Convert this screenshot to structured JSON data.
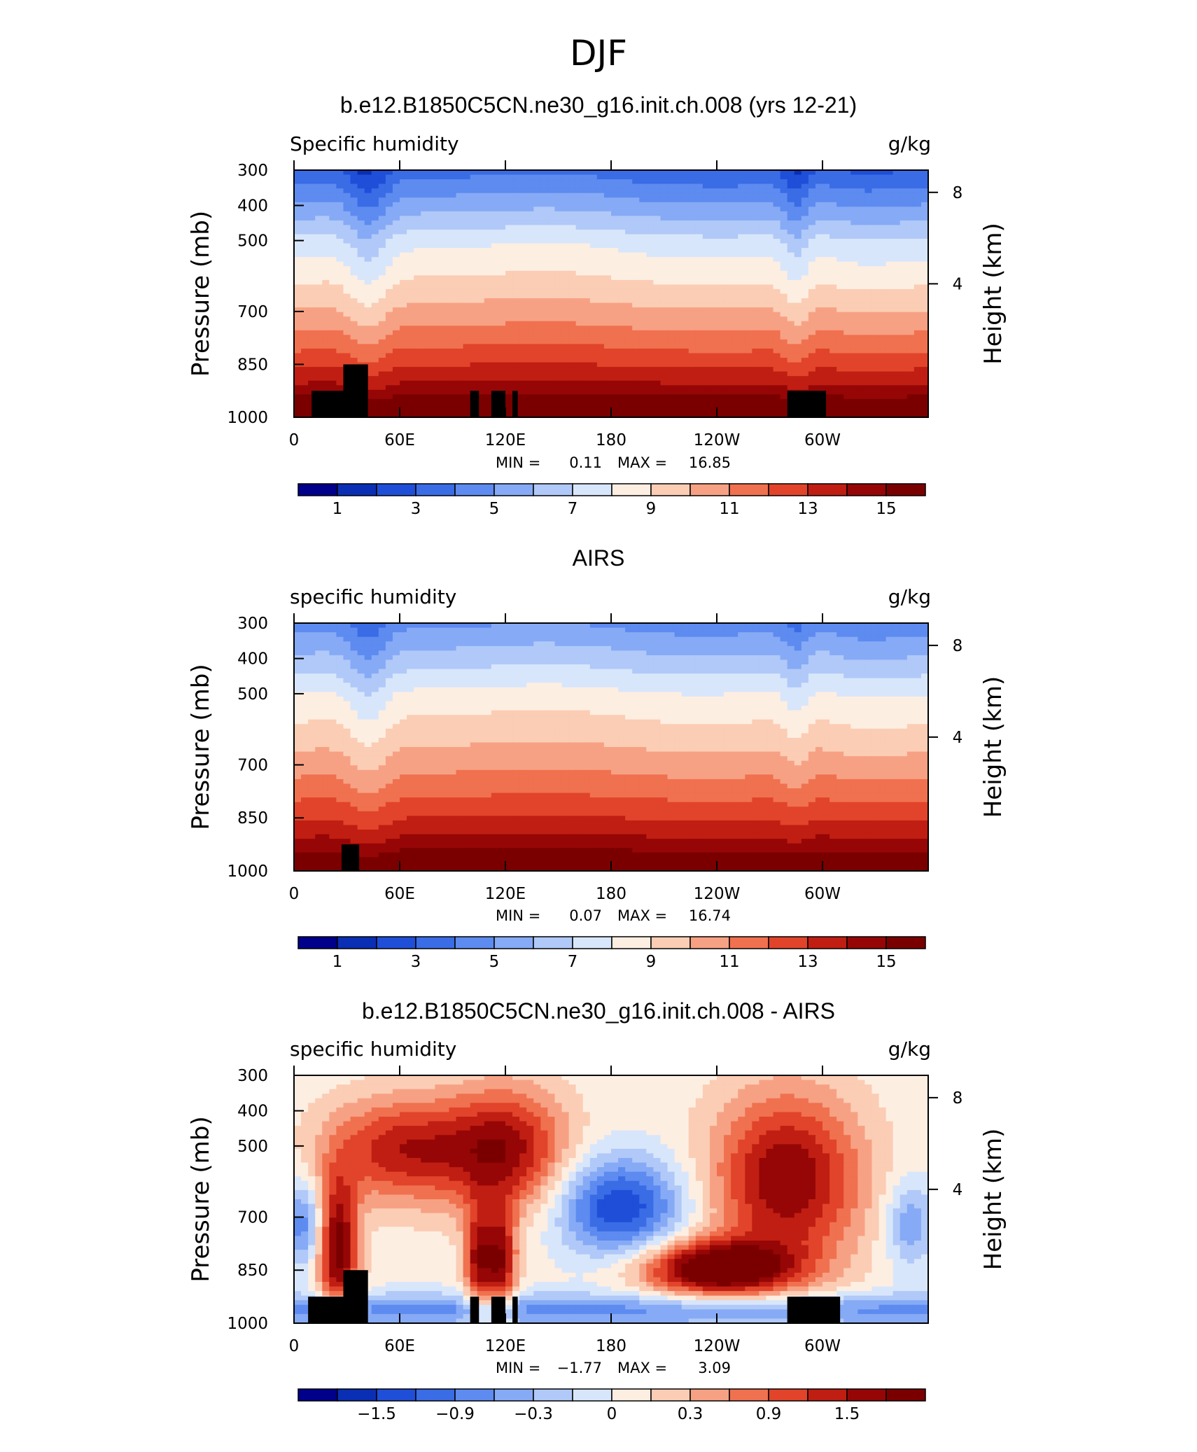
{
  "figure_title": "DJF",
  "chart_data": [
    {
      "type": "heatmap",
      "title": "b.e12.B1850C5CN.ne30_g16.init.ch.008 (yrs 12-21)",
      "left_label": "Specific humidity",
      "right_label": "g/kg",
      "ylabel": "Pressure (mb)",
      "ylabel_right": "Height (km)",
      "pressure_ticks": [
        "300",
        "400",
        "500",
        "700",
        "850",
        "1000"
      ],
      "height_ticks": [
        "8",
        "4"
      ],
      "x_tick_labels": [
        "0",
        "60E",
        "120E",
        "180",
        "120W",
        "60W"
      ],
      "stats": {
        "min_label": "MIN =",
        "min": "0.11",
        "max_label": "MAX =",
        "max": "16.85"
      },
      "colorbar_ticks": [
        "1",
        "3",
        "5",
        "7",
        "9",
        "11",
        "13",
        "15"
      ],
      "colors": [
        "#00008b",
        "#0a2fb4",
        "#1f4fd8",
        "#3a6ce6",
        "#5d8bf0",
        "#86aaf5",
        "#b0c9f8",
        "#d8e6fb",
        "#fdeee2",
        "#fbcdb4",
        "#f7a184",
        "#f0714f",
        "#e1442a",
        "#c01e12",
        "#960606",
        "#7a0000"
      ],
      "profile": {
        "base_level": 17.5,
        "base_span": 13.2,
        "ridge_amp": 0.9,
        "africa_dip": 1.8,
        "andes_dip": 1.6,
        "upper_lat": 2.0
      },
      "terrain": [
        [
          10,
          32,
          2
        ],
        [
          28,
          42,
          3
        ],
        [
          100,
          105,
          2
        ],
        [
          112,
          120,
          2
        ],
        [
          124,
          127,
          2
        ],
        [
          280,
          302,
          2
        ]
      ]
    },
    {
      "type": "heatmap",
      "title": "AIRS",
      "left_label": "specific humidity",
      "right_label": "g/kg",
      "ylabel": "Pressure (mb)",
      "ylabel_right": "Height (km)",
      "pressure_ticks": [
        "300",
        "400",
        "500",
        "700",
        "850",
        "1000"
      ],
      "height_ticks": [
        "8",
        "4"
      ],
      "x_tick_labels": [
        "0",
        "60E",
        "120E",
        "180",
        "120W",
        "60W"
      ],
      "stats": {
        "min_label": "MIN =",
        "min": "0.07",
        "max_label": "MAX =",
        "max": "16.74"
      },
      "colorbar_ticks": [
        "1",
        "3",
        "5",
        "7",
        "9",
        "11",
        "13",
        "15"
      ],
      "colors": [
        "#00008b",
        "#0a2fb4",
        "#1f4fd8",
        "#3a6ce6",
        "#5d8bf0",
        "#86aaf5",
        "#b0c9f8",
        "#d8e6fb",
        "#fdeee2",
        "#fbcdb4",
        "#f7a184",
        "#f0714f",
        "#e1442a",
        "#c01e12",
        "#960606",
        "#7a0000"
      ],
      "profile": {
        "base_level": 17.0,
        "base_span": 11.8,
        "ridge_amp": 0.7,
        "africa_dip": 1.6,
        "andes_dip": 1.2,
        "upper_lat": 1.6
      },
      "terrain": [
        [
          27,
          37,
          2
        ]
      ]
    },
    {
      "type": "heatmap",
      "title": "b.e12.B1850C5CN.ne30_g16.init.ch.008 - AIRS",
      "left_label": "specific humidity",
      "right_label": "g/kg",
      "ylabel": "Pressure (mb)",
      "ylabel_right": "Height (km)",
      "pressure_ticks": [
        "300",
        "400",
        "500",
        "700",
        "850",
        "1000"
      ],
      "height_ticks": [
        "8",
        "4"
      ],
      "x_tick_labels": [
        "0",
        "60E",
        "120E",
        "180",
        "120W",
        "60W"
      ],
      "stats": {
        "min_label": "MIN =",
        "min": "−1.77",
        "max_label": "MAX =",
        "max": "3.09"
      },
      "colorbar_ticks": [
        "−1.5",
        "−0.9",
        "−0.3",
        "0",
        "0.3",
        "0.9",
        "1.5"
      ],
      "colors": [
        "#00008b",
        "#0a2fb4",
        "#1f4fd8",
        "#3a6ce6",
        "#5d8bf0",
        "#86aaf5",
        "#b0c9f8",
        "#d8e6fb",
        "#fdeee2",
        "#fbcdb4",
        "#f7a184",
        "#f0714f",
        "#e1442a",
        "#c01e12",
        "#960606",
        "#7a0000"
      ],
      "diff": true,
      "terrain": [
        [
          8,
          32,
          2
        ],
        [
          28,
          42,
          3
        ],
        [
          100,
          105,
          2
        ],
        [
          112,
          120,
          2
        ],
        [
          124,
          127,
          2
        ],
        [
          280,
          310,
          2
        ]
      ]
    }
  ]
}
